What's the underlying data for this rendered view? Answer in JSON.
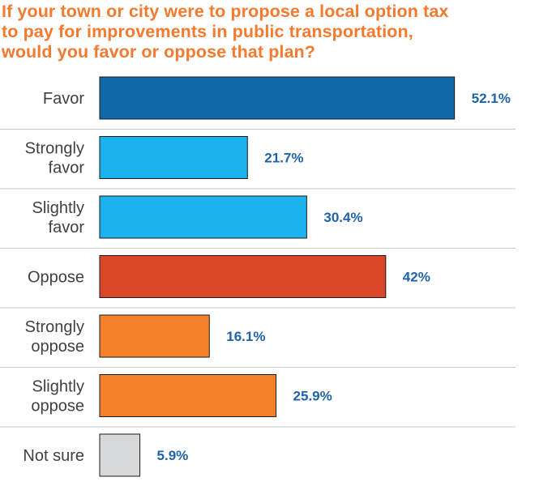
{
  "chart_data": {
    "type": "bar",
    "orientation": "horizontal",
    "title_lines": [
      "If your town or city were to propose a local option tax",
      "to pay for improvements in public transportation,",
      "would you favor or oppose that plan?"
    ],
    "categories": [
      [
        "Favor"
      ],
      [
        "Strongly",
        "favor"
      ],
      [
        "Slightly",
        "favor"
      ],
      [
        "Oppose"
      ],
      [
        "Strongly",
        "oppose"
      ],
      [
        "Slightly",
        "oppose"
      ],
      [
        "Not sure"
      ]
    ],
    "values": [
      52.1,
      21.7,
      30.4,
      42,
      16.1,
      25.9,
      5.9
    ],
    "value_labels": [
      "52.1%",
      "21.7%",
      "30.4%",
      "42%",
      "16.1%",
      "25.9%",
      "5.9%"
    ],
    "bar_colors": [
      "#1168a8",
      "#1bb2ee",
      "#1bb2ee",
      "#d84828",
      "#f5812a",
      "#f5812a",
      "#d7d8da"
    ],
    "xlim": [
      0,
      100
    ],
    "grid": false,
    "legend": "none",
    "colors": {
      "title": "#f47a2f",
      "value_label": "#1f62a8",
      "category_label": "#404040",
      "separator": "#c8c8c8",
      "bar_outline": "#1a1a1a"
    }
  }
}
